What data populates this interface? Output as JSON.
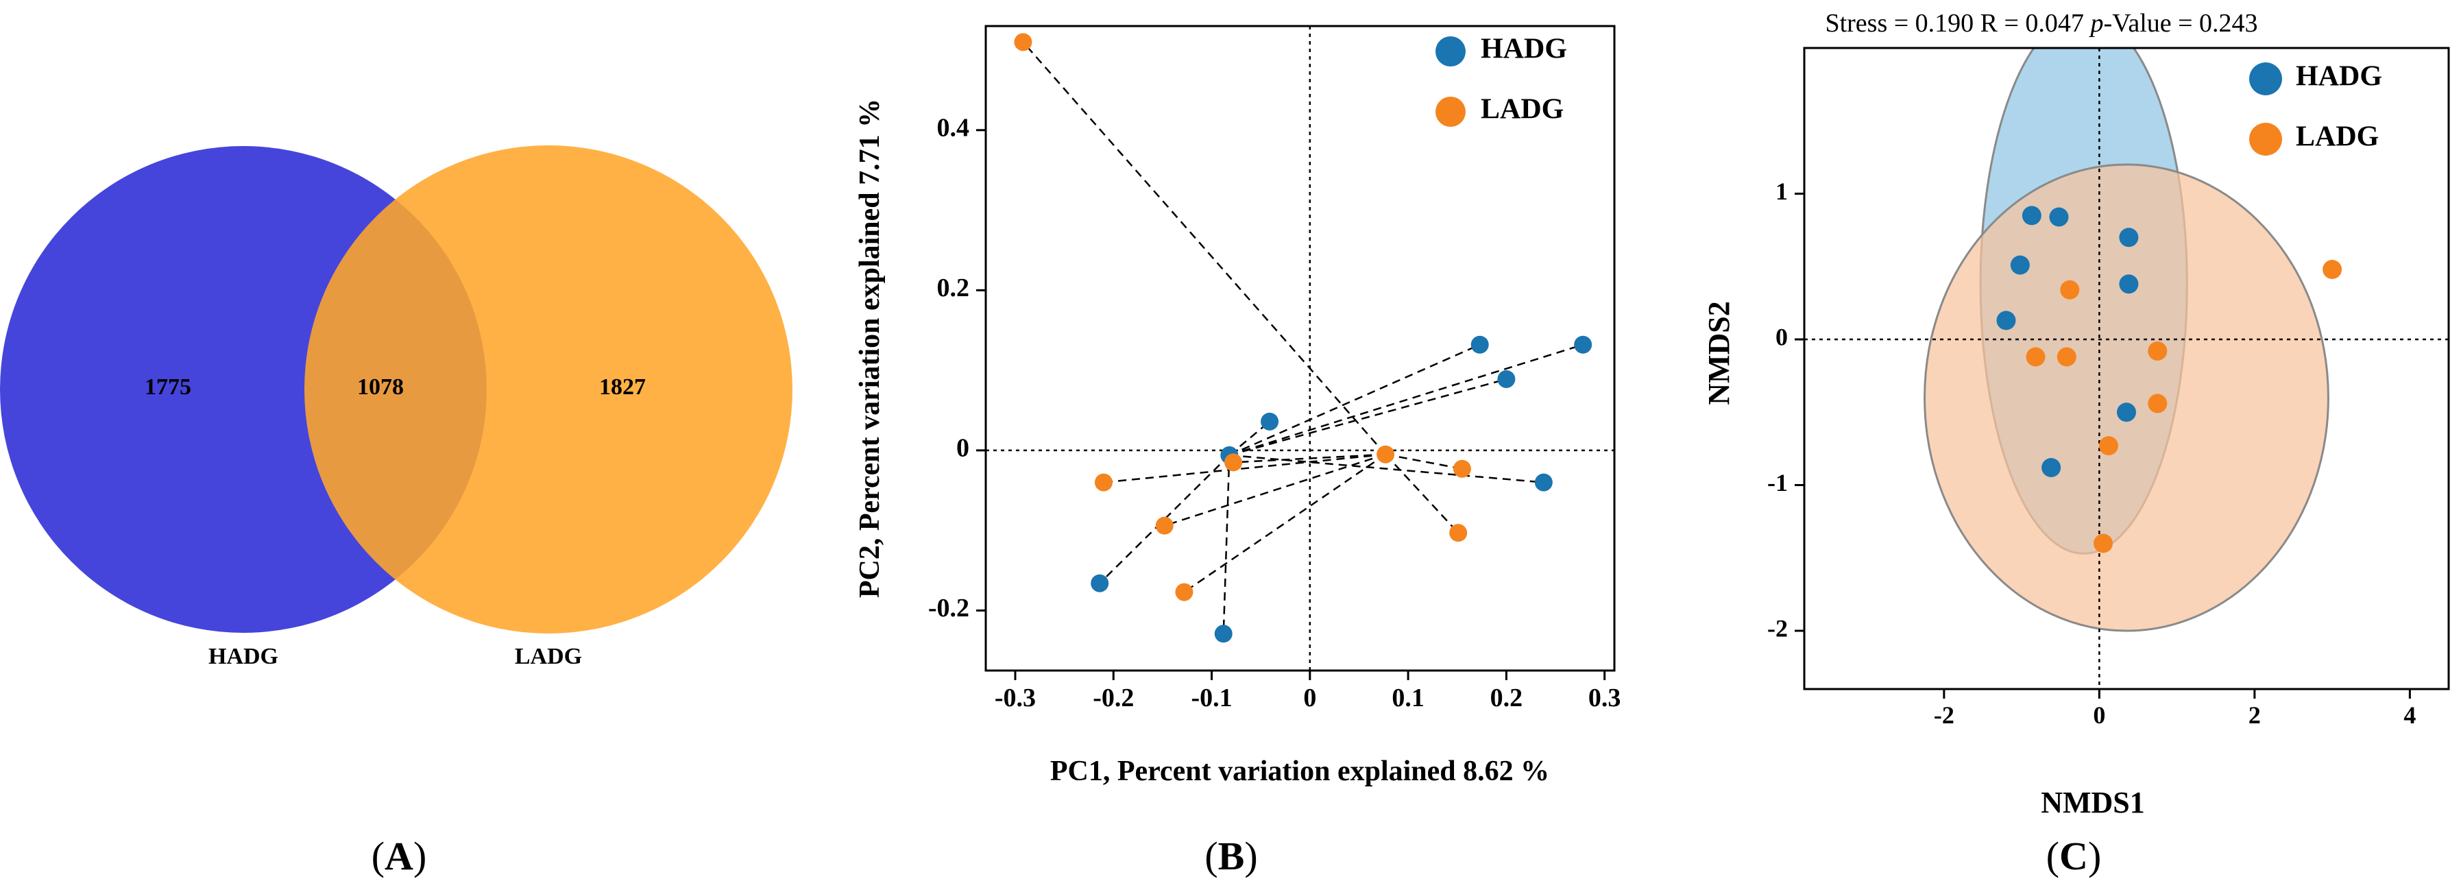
{
  "panels": {
    "a": {
      "label": "A",
      "open": "(",
      "close": ")"
    },
    "b": {
      "label": "B",
      "open": "(",
      "close": ")"
    },
    "c": {
      "label": "C",
      "open": "(",
      "close": ")"
    }
  },
  "chart_data": [
    {
      "type": "venn",
      "sets": [
        {
          "name": "HADG",
          "unique": 1775,
          "color": "#3b3bd9"
        },
        {
          "name": "LADG",
          "unique": 1827,
          "color": "#ffa62b"
        }
      ],
      "overlap": 1078,
      "overlap_color": "#d98a43"
    },
    {
      "type": "scatter",
      "subtype": "PCA with centroid spider lines",
      "xlabel": "PC1, Percent variation explained 8.62 %",
      "ylabel": "PC2, Percent variation explained 7.71 %",
      "xlim": [
        -0.33,
        0.31
      ],
      "ylim": [
        -0.275,
        0.53
      ],
      "xticks": [
        -0.3,
        -0.2,
        -0.1,
        0,
        0.1,
        0.2,
        0.3
      ],
      "xticklabels": [
        "-0.3",
        "-0.2",
        "-0.1",
        "0",
        "0.1",
        "0.2",
        "0.3"
      ],
      "yticks": [
        -0.2,
        0,
        0.2,
        0.4
      ],
      "yticklabels": [
        "-0.2",
        "0",
        "0.2",
        "0.4"
      ],
      "legend": [
        {
          "name": "HADG",
          "color": "#1a75b0"
        },
        {
          "name": "LADG",
          "color": "#f5841f"
        }
      ],
      "series": [
        {
          "name": "HADG",
          "color": "#1a75b0",
          "centroid": [
            -0.082,
            -0.006
          ],
          "points": [
            [
              -0.041,
              0.036
            ],
            [
              0.173,
              0.132
            ],
            [
              0.2,
              0.089
            ],
            [
              0.278,
              0.132
            ],
            [
              0.238,
              -0.04
            ],
            [
              -0.214,
              -0.166
            ],
            [
              -0.088,
              -0.229
            ]
          ]
        },
        {
          "name": "LADG",
          "color": "#f5841f",
          "centroid": [
            0.077,
            -0.005
          ],
          "points": [
            [
              -0.292,
              0.51
            ],
            [
              -0.21,
              -0.04
            ],
            [
              -0.148,
              -0.094
            ],
            [
              -0.128,
              -0.177
            ],
            [
              -0.078,
              -0.015
            ],
            [
              0.155,
              -0.023
            ],
            [
              0.151,
              -0.103
            ]
          ]
        }
      ]
    },
    {
      "type": "scatter",
      "subtype": "NMDS with confidence ellipses",
      "title": "Stress = 0.190   R = 0.047   p-Value = 0.243",
      "title_parts": {
        "pre": "Stress = 0.190   R = 0.047   ",
        "italic": "p",
        "post": "-Value = 0.243"
      },
      "xlabel": "NMDS1",
      "ylabel": "NMDS2",
      "xlim": [
        -3.8,
        4.5
      ],
      "ylim": [
        -2.4,
        2.0
      ],
      "xticks": [
        -2,
        0,
        2,
        4
      ],
      "xticklabels": [
        "-2",
        "0",
        "2",
        "4"
      ],
      "yticks": [
        -2,
        -1,
        0,
        1
      ],
      "yticklabels": [
        "-2",
        "-1",
        "0",
        "1"
      ],
      "legend": [
        {
          "name": "HADG",
          "color": "#1a75b0"
        },
        {
          "name": "LADG",
          "color": "#f5841f"
        }
      ],
      "ellipses": [
        {
          "group": "HADG",
          "cx": -0.2,
          "cy": 0.38,
          "rx": 1.33,
          "ry": 1.85,
          "fill": "#8fc5e3"
        },
        {
          "group": "LADG",
          "cx": 0.35,
          "cy": -0.4,
          "rx": 2.6,
          "ry": 1.6,
          "fill": "#f8c49c"
        }
      ],
      "series": [
        {
          "name": "HADG",
          "color": "#1a75b0",
          "points": [
            [
              -0.87,
              0.85
            ],
            [
              -0.52,
              0.84
            ],
            [
              -1.02,
              0.51
            ],
            [
              0.38,
              0.7
            ],
            [
              0.38,
              0.38
            ],
            [
              -1.2,
              0.13
            ],
            [
              0.35,
              -0.5
            ],
            [
              -0.62,
              -0.88
            ]
          ]
        },
        {
          "name": "LADG",
          "color": "#f5841f",
          "points": [
            [
              -0.38,
              0.34
            ],
            [
              -0.82,
              -0.12
            ],
            [
              -0.42,
              -0.12
            ],
            [
              0.75,
              -0.08
            ],
            [
              0.75,
              -0.44
            ],
            [
              0.12,
              -0.73
            ],
            [
              0.05,
              -1.4
            ],
            [
              3.0,
              0.48
            ]
          ]
        }
      ]
    }
  ]
}
